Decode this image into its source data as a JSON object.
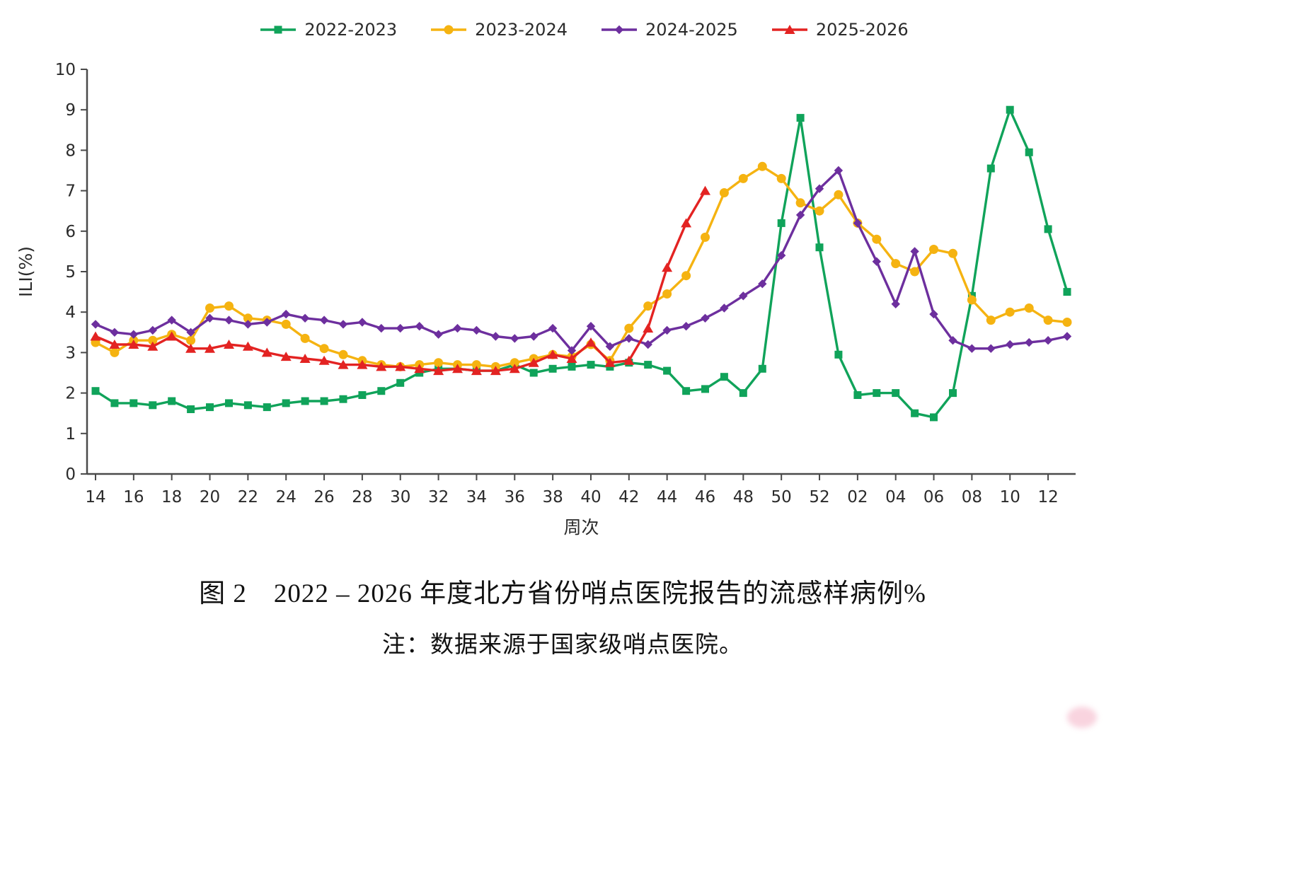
{
  "chart_data": {
    "type": "line",
    "title": "",
    "xlabel": "周次",
    "ylabel": "ILI(%)",
    "ylim": [
      0,
      10
    ],
    "yticks": [
      0,
      1,
      2,
      3,
      4,
      5,
      6,
      7,
      8,
      9,
      10
    ],
    "grid": false,
    "legend_position": "top",
    "categories": [
      "14",
      "15",
      "16",
      "17",
      "18",
      "19",
      "20",
      "21",
      "22",
      "23",
      "24",
      "25",
      "26",
      "27",
      "28",
      "29",
      "30",
      "31",
      "32",
      "33",
      "34",
      "35",
      "36",
      "37",
      "38",
      "39",
      "40",
      "41",
      "42",
      "43",
      "44",
      "45",
      "46",
      "47",
      "48",
      "49",
      "50",
      "51",
      "52",
      "01",
      "02",
      "03",
      "04",
      "05",
      "06",
      "07",
      "08",
      "09",
      "10",
      "11",
      "12",
      "13"
    ],
    "xtick_labels": [
      "14",
      "16",
      "18",
      "20",
      "22",
      "24",
      "26",
      "28",
      "30",
      "32",
      "34",
      "36",
      "38",
      "40",
      "42",
      "44",
      "46",
      "48",
      "50",
      "52",
      "02",
      "04",
      "06",
      "08",
      "10",
      "12"
    ],
    "series": [
      {
        "name": "2022-2023",
        "color": "#10a35a",
        "marker": "square",
        "values": [
          2.05,
          1.75,
          1.75,
          1.7,
          1.8,
          1.6,
          1.65,
          1.75,
          1.7,
          1.65,
          1.75,
          1.8,
          1.8,
          1.85,
          1.95,
          2.05,
          2.25,
          2.5,
          2.6,
          2.6,
          2.55,
          2.55,
          2.7,
          2.5,
          2.6,
          2.65,
          2.7,
          2.65,
          2.75,
          2.7,
          2.55,
          2.05,
          2.1,
          2.4,
          2.0,
          2.6,
          6.2,
          8.8,
          5.6,
          2.95,
          1.95,
          2.0,
          2.0,
          1.5,
          1.4,
          2.0,
          4.4,
          7.55,
          9.0,
          7.95,
          6.05,
          4.5
        ]
      },
      {
        "name": "2023-2024",
        "color": "#f5b311",
        "marker": "circle",
        "values": [
          3.25,
          3.0,
          3.3,
          3.3,
          3.45,
          3.3,
          4.1,
          4.15,
          3.85,
          3.8,
          3.7,
          3.35,
          3.1,
          2.95,
          2.8,
          2.7,
          2.65,
          2.7,
          2.75,
          2.7,
          2.7,
          2.65,
          2.75,
          2.85,
          2.95,
          2.9,
          3.2,
          2.8,
          3.6,
          4.15,
          4.45,
          4.9,
          5.85,
          6.95,
          7.3,
          7.6,
          7.3,
          6.7,
          6.5,
          6.9,
          6.2,
          5.8,
          5.2,
          5.0,
          5.55,
          5.45,
          4.3,
          3.8,
          4.0,
          4.1,
          3.8,
          3.75
        ]
      },
      {
        "name": "2024-2025",
        "color": "#6d2f9e",
        "marker": "diamond",
        "values": [
          3.7,
          3.5,
          3.45,
          3.55,
          3.8,
          3.5,
          3.85,
          3.8,
          3.7,
          3.75,
          3.95,
          3.85,
          3.8,
          3.7,
          3.75,
          3.6,
          3.6,
          3.65,
          3.45,
          3.6,
          3.55,
          3.4,
          3.35,
          3.4,
          3.6,
          3.05,
          3.65,
          3.15,
          3.35,
          3.2,
          3.55,
          3.65,
          3.85,
          4.1,
          4.4,
          4.7,
          5.4,
          6.4,
          7.05,
          7.5,
          6.2,
          5.25,
          4.2,
          5.5,
          3.95,
          3.3,
          3.1,
          3.1,
          3.2,
          3.25,
          3.3,
          3.4
        ]
      },
      {
        "name": "2025-2026",
        "color": "#e32322",
        "marker": "triangle",
        "values": [
          3.4,
          3.2,
          3.2,
          3.15,
          3.4,
          3.1,
          3.1,
          3.2,
          3.15,
          3.0,
          2.9,
          2.85,
          2.8,
          2.7,
          2.7,
          2.65,
          2.65,
          2.6,
          2.55,
          2.6,
          2.55,
          2.55,
          2.6,
          2.75,
          2.95,
          2.85,
          3.25,
          2.75,
          2.8,
          3.6,
          5.1,
          6.2,
          7.0
        ]
      }
    ]
  },
  "caption": {
    "title": "图 2　2022 – 2026 年度北方省份哨点医院报告的流感样病例%",
    "note": "注：数据来源于国家级哨点医院。"
  }
}
